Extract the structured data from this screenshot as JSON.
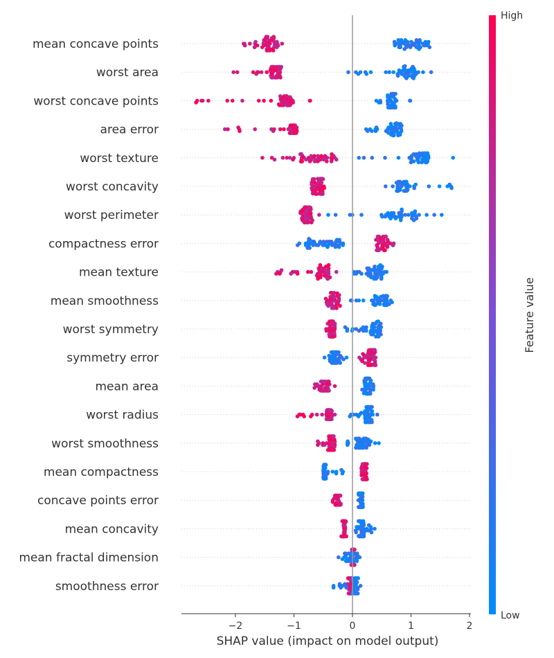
{
  "chart_data": {
    "type": "scatter",
    "subtype": "shap-beeswarm",
    "title": "",
    "xlabel": "SHAP value (impact on model output)",
    "ylabel": "",
    "xlim": [
      -2.9,
      2.0
    ],
    "xticks": [
      -2,
      -1,
      0,
      1,
      2
    ],
    "xtick_labels": [
      "−2",
      "−1",
      "0",
      "1",
      "2"
    ],
    "grid": false,
    "colorbar": {
      "label": "Feature value",
      "high_label": "High",
      "low_label": "Low",
      "low_color": "#008bfb",
      "high_color": "#ff0051"
    },
    "features": [
      {
        "name": "mean concave points",
        "high_range": [
          -2.0,
          -1.2
        ],
        "low_range": [
          0.7,
          1.45
        ],
        "high_core": [
          -1.55,
          -1.25
        ],
        "low_core": [
          0.75,
          1.3
        ],
        "high_spread": 0.9,
        "low_spread": 0.9
      },
      {
        "name": "worst area",
        "high_range": [
          -2.05,
          -1.05
        ],
        "low_range": [
          -0.1,
          1.4
        ],
        "high_core": [
          -1.4,
          -1.2
        ],
        "low_core": [
          0.75,
          1.1
        ],
        "high_spread": 0.7,
        "low_spread": 0.8
      },
      {
        "name": "worst concave points",
        "high_range": [
          -2.7,
          -0.5
        ],
        "low_range": [
          0.35,
          1.1
        ],
        "high_core": [
          -1.25,
          -1.05
        ],
        "low_core": [
          0.6,
          0.75
        ],
        "high_spread": 0.6,
        "low_spread": 0.9
      },
      {
        "name": "area error",
        "high_range": [
          -2.2,
          -0.9
        ],
        "low_range": [
          0.0,
          0.9
        ],
        "high_core": [
          -1.1,
          -0.95
        ],
        "low_core": [
          0.6,
          0.85
        ],
        "high_spread": 0.5,
        "low_spread": 0.8
      },
      {
        "name": "worst texture",
        "high_range": [
          -1.55,
          -0.2
        ],
        "low_range": [
          0.05,
          1.75
        ],
        "high_core": [
          -0.9,
          -0.3
        ],
        "low_core": [
          1.0,
          1.3
        ],
        "high_spread": 0.5,
        "low_spread": 0.6
      },
      {
        "name": "worst concavity",
        "high_range": [
          -0.8,
          -0.45
        ],
        "low_range": [
          0.55,
          1.75
        ],
        "high_core": [
          -0.7,
          -0.5
        ],
        "low_core": [
          0.75,
          0.95
        ],
        "high_spread": 1.0,
        "low_spread": 0.6
      },
      {
        "name": "worst perimeter",
        "high_range": [
          -0.9,
          -0.55
        ],
        "low_range": [
          -0.45,
          1.55
        ],
        "high_core": [
          -0.85,
          -0.7
        ],
        "low_core": [
          0.55,
          1.1
        ],
        "high_spread": 1.0,
        "low_spread": 0.8
      },
      {
        "name": "compactness error",
        "high_range": [
          0.4,
          0.75
        ],
        "low_range": [
          -0.95,
          -0.15
        ],
        "high_core": [
          0.4,
          0.6
        ],
        "low_core": [
          -0.8,
          -0.2
        ],
        "high_spread": 0.9,
        "low_spread": 0.6
      },
      {
        "name": "mean texture",
        "high_range": [
          -1.35,
          -0.25
        ],
        "low_range": [
          -0.05,
          0.6
        ],
        "high_core": [
          -0.6,
          -0.4
        ],
        "low_core": [
          0.25,
          0.5
        ],
        "high_spread": 0.9,
        "low_spread": 0.9
      },
      {
        "name": "mean smoothness",
        "high_range": [
          -0.5,
          -0.2
        ],
        "low_range": [
          -0.1,
          0.7
        ],
        "high_core": [
          -0.45,
          -0.25
        ],
        "low_core": [
          0.35,
          0.6
        ],
        "high_spread": 1.0,
        "low_spread": 0.6
      },
      {
        "name": "worst symmetry",
        "high_range": [
          -0.45,
          -0.3
        ],
        "low_range": [
          -0.15,
          0.5
        ],
        "high_core": [
          -0.4,
          -0.3
        ],
        "low_core": [
          0.3,
          0.5
        ],
        "high_spread": 1.0,
        "low_spread": 1.0
      },
      {
        "name": "symmetry error",
        "high_range": [
          0.1,
          0.45
        ],
        "low_range": [
          -0.5,
          -0.1
        ],
        "high_core": [
          0.25,
          0.4
        ],
        "low_core": [
          -0.4,
          -0.2
        ],
        "high_spread": 1.0,
        "low_spread": 0.7
      },
      {
        "name": "mean area",
        "high_range": [
          -0.65,
          -0.3
        ],
        "low_range": [
          0.15,
          0.4
        ],
        "high_core": [
          -0.55,
          -0.4
        ],
        "low_core": [
          0.2,
          0.3
        ],
        "high_spread": 0.6,
        "low_spread": 1.0
      },
      {
        "name": "worst radius",
        "high_range": [
          -0.95,
          -0.3
        ],
        "low_range": [
          -0.1,
          0.45
        ],
        "high_core": [
          -0.45,
          -0.35
        ],
        "low_core": [
          0.2,
          0.35
        ],
        "high_spread": 0.6,
        "low_spread": 1.0
      },
      {
        "name": "worst smoothness",
        "high_range": [
          -0.6,
          -0.3
        ],
        "low_range": [
          -0.1,
          0.5
        ],
        "high_core": [
          -0.4,
          -0.3
        ],
        "low_core": [
          0.05,
          0.3
        ],
        "high_spread": 0.9,
        "low_spread": 0.6
      },
      {
        "name": "mean compactness",
        "high_range": [
          0.15,
          0.25
        ],
        "low_range": [
          -0.5,
          -0.1
        ],
        "high_core": [
          0.15,
          0.25
        ],
        "low_core": [
          -0.5,
          -0.45
        ],
        "high_spread": 1.0,
        "low_spread": 0.9
      },
      {
        "name": "concave points error",
        "high_range": [
          -0.35,
          -0.2
        ],
        "low_range": [
          0.1,
          0.2
        ],
        "high_core": [
          -0.3,
          -0.2
        ],
        "low_core": [
          0.12,
          0.18
        ],
        "high_spread": 0.6,
        "low_spread": 0.9
      },
      {
        "name": "mean concavity",
        "high_range": [
          -0.2,
          -0.1
        ],
        "low_range": [
          0.05,
          0.4
        ],
        "high_core": [
          -0.18,
          -0.12
        ],
        "low_core": [
          0.1,
          0.2
        ],
        "high_spread": 1.0,
        "low_spread": 1.0
      },
      {
        "name": "mean fractal dimension",
        "high_range": [
          -0.05,
          0.1
        ],
        "low_range": [
          -0.25,
          0.15
        ],
        "high_core": [
          -0.02,
          0.05
        ],
        "low_core": [
          -0.15,
          0.1
        ],
        "high_spread": 1.0,
        "low_spread": 0.5
      },
      {
        "name": "smoothness error",
        "high_range": [
          -0.1,
          0.0
        ],
        "low_range": [
          -0.35,
          0.15
        ],
        "high_core": [
          -0.08,
          0.0
        ],
        "low_core": [
          0.0,
          0.1
        ],
        "high_spread": 1.0,
        "low_spread": 1.0
      }
    ]
  }
}
